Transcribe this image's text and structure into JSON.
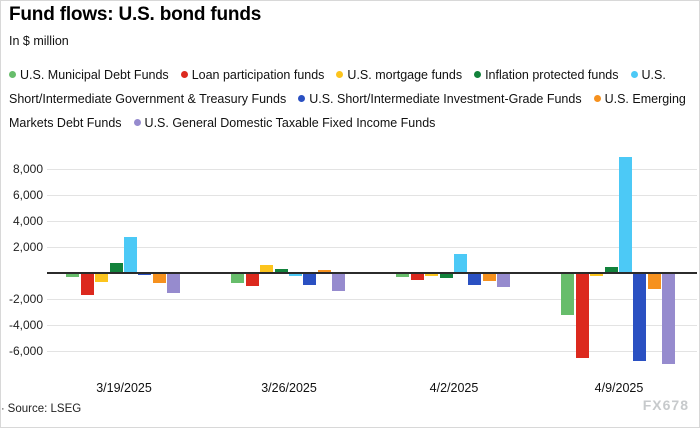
{
  "header": {
    "title": "Fund flows: U.S. bond funds",
    "subtitle": "In $ million"
  },
  "chart_data": {
    "type": "bar",
    "title": "Fund flows: U.S. bond funds",
    "ylabel": "In $ million",
    "categories": [
      "3/19/2025",
      "3/26/2025",
      "4/2/2025",
      "4/9/2025"
    ],
    "series": [
      {
        "name": "U.S. Municipal Debt Funds",
        "color": "#67bd6b",
        "values": [
          -300,
          -800,
          -300,
          -3200
        ]
      },
      {
        "name": "Loan participation funds",
        "color": "#dc291e",
        "values": [
          -1700,
          -1000,
          -550,
          -6500
        ]
      },
      {
        "name": "U.S. mortgage funds",
        "color": "#fcc41d",
        "values": [
          -700,
          650,
          -200,
          -250
        ]
      },
      {
        "name": "Inflation protected funds",
        "color": "#12823b",
        "values": [
          800,
          300,
          -350,
          500
        ]
      },
      {
        "name": "U.S. Short/Intermediate Government & Treasury Funds",
        "color": "#4cc9f6",
        "values": [
          2800,
          -250,
          1500,
          8900
        ]
      },
      {
        "name": "U.S. Short/Intermediate Investment-Grade Funds",
        "color": "#2a50c2",
        "values": [
          -150,
          -900,
          -900,
          -6800
        ]
      },
      {
        "name": "U.S. Emerging Markets Debt Funds",
        "color": "#f6911e",
        "values": [
          -800,
          200,
          -600,
          -1200
        ]
      },
      {
        "name": "U.S. General Domestic Taxable Fixed Income Funds",
        "color": "#968bce",
        "values": [
          -1500,
          -1400,
          -1100,
          -7000
        ]
      }
    ],
    "yticks": [
      8000,
      6000,
      4000,
      2000,
      -2000,
      -4000,
      -6000
    ],
    "ylim": [
      -7500,
      9200
    ],
    "grid": true,
    "legend_position": "top",
    "baseline_value": 0
  },
  "footer": {
    "bullet": "·",
    "source": "Source: LSEG",
    "watermark": "FX678"
  }
}
